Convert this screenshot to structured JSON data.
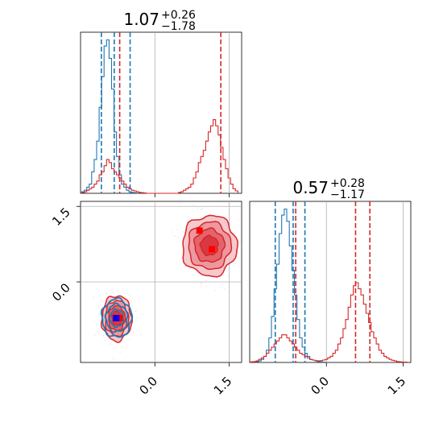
{
  "chart_data": [
    {
      "type": "histogram",
      "panel": "marginal-param-1",
      "title": {
        "value": "1.07",
        "upper": "+0.26",
        "lower": "−1.78"
      },
      "xlim": [
        -1.5,
        1.75
      ],
      "xticks": [
        "0.0",
        "1.5"
      ],
      "grid": true,
      "series": [
        {
          "color": "#1f77b4",
          "bin_centers": [
            -1.45,
            -1.4,
            -1.35,
            -1.3,
            -1.25,
            -1.2,
            -1.15,
            -1.1,
            -1.05,
            -1.0,
            -0.95,
            -0.9,
            -0.85,
            -0.8,
            -0.75,
            -0.7,
            -0.65,
            -0.6,
            -0.55,
            -0.5,
            -0.45,
            -0.4
          ],
          "counts": [
            0.5,
            1,
            2,
            3,
            7,
            11,
            17,
            28,
            38,
            48,
            50,
            44,
            34,
            20,
            12,
            6,
            3,
            2,
            1,
            0.5,
            0.3,
            0.2
          ],
          "quantile_lines": [
            -1.08,
            -0.82,
            -0.5
          ]
        },
        {
          "color": "#d62728",
          "bin_centers": [
            -1.45,
            -1.4,
            -1.35,
            -1.3,
            -1.25,
            -1.2,
            -1.15,
            -1.1,
            -1.05,
            -1.0,
            -0.95,
            -0.9,
            -0.85,
            -0.8,
            -0.75,
            -0.7,
            -0.65,
            -0.6,
            -0.55,
            -0.5,
            -0.45,
            -0.4,
            -0.35,
            -0.3,
            -0.25,
            -0.2,
            0.5,
            0.55,
            0.6,
            0.65,
            0.7,
            0.75,
            0.8,
            0.85,
            0.9,
            0.95,
            1.0,
            1.05,
            1.1,
            1.15,
            1.2,
            1.25,
            1.3,
            1.35,
            1.4,
            1.45,
            1.5,
            1.55,
            1.6,
            1.65
          ],
          "counts": [
            0.3,
            0.5,
            1,
            1.5,
            2,
            3,
            4,
            6,
            7,
            9,
            11,
            10,
            8,
            7,
            6,
            5,
            4,
            3,
            2,
            1.5,
            1,
            0.8,
            0.5,
            0.3,
            0.2,
            0.1,
            0.3,
            0.5,
            1,
            1.5,
            2,
            3,
            5,
            7,
            10,
            12,
            14,
            17,
            20,
            22,
            24,
            22,
            19,
            15,
            11,
            8,
            5,
            3,
            1.5,
            0.8
          ],
          "quantile_lines": [
            -0.71,
            1.33
          ]
        }
      ]
    },
    {
      "type": "contour",
      "panel": "joint-param-1-vs-param-2",
      "xlim": [
        -1.5,
        1.75
      ],
      "ylim": [
        -1.6,
        1.6
      ],
      "xticks": [
        "0.0",
        "1.5"
      ],
      "yticks": [
        "0.0",
        "1.5"
      ],
      "grid": true,
      "series": [
        {
          "color": "#d62728",
          "markers": [
            {
              "x": -0.71,
              "y": -0.72
            },
            {
              "x": 0.9,
              "y": 1.02
            },
            {
              "x": 1.15,
              "y": 0.65
            }
          ],
          "modes": [
            {
              "cx": -0.77,
              "cy": -0.72,
              "rx": 0.3,
              "ry": 0.45
            },
            {
              "cx": 1.1,
              "cy": 0.72,
              "rx": 0.55,
              "ry": 0.6
            }
          ]
        },
        {
          "color": "#1f77b4",
          "markers": [
            {
              "x": -0.78,
              "y": -0.72
            }
          ],
          "modes": [
            {
              "cx": -0.77,
              "cy": -0.72,
              "rx": 0.3,
              "ry": 0.38
            }
          ]
        }
      ]
    },
    {
      "type": "histogram",
      "panel": "marginal-param-2",
      "title": {
        "value": "0.57",
        "upper": "+0.28",
        "lower": "−1.17"
      },
      "xlim": [
        -1.5,
        1.65
      ],
      "xticks": [
        "0.0",
        "1.5"
      ],
      "grid": true,
      "series": [
        {
          "color": "#1f77b4",
          "bin_centers": [
            -1.35,
            -1.3,
            -1.25,
            -1.2,
            -1.15,
            -1.1,
            -1.05,
            -1.0,
            -0.95,
            -0.9,
            -0.85,
            -0.8,
            -0.75,
            -0.7,
            -0.65,
            -0.6,
            -0.55,
            -0.5,
            -0.45,
            -0.4,
            -0.35,
            -0.3,
            -0.25,
            -0.2,
            -0.15,
            -0.1,
            -0.05
          ],
          "counts": [
            0.3,
            0.5,
            1,
            2,
            4,
            8,
            15,
            24,
            32,
            42,
            48,
            50,
            46,
            38,
            30,
            22,
            14,
            8,
            5,
            3,
            2,
            1,
            0.8,
            0.5,
            0.3,
            0.2,
            0.1
          ],
          "quantile_lines": [
            -1.0,
            -0.65,
            -0.42
          ]
        },
        {
          "color": "#d62728",
          "bin_centers": [
            -1.45,
            -1.4,
            -1.35,
            -1.3,
            -1.25,
            -1.2,
            -1.15,
            -1.1,
            -1.05,
            -1.0,
            -0.95,
            -0.9,
            -0.85,
            -0.8,
            -0.75,
            -0.7,
            -0.65,
            -0.6,
            -0.55,
            -0.5,
            -0.45,
            -0.4,
            -0.35,
            -0.3,
            -0.25,
            -0.2,
            -0.15,
            -0.1,
            -0.05,
            0.0,
            0.05,
            0.1,
            0.15,
            0.2,
            0.25,
            0.3,
            0.35,
            0.4,
            0.45,
            0.5,
            0.55,
            0.6,
            0.65,
            0.7,
            0.75,
            0.8,
            0.85,
            0.9,
            0.95,
            1.0,
            1.05,
            1.1,
            1.15,
            1.2,
            1.25,
            1.3,
            1.35,
            1.4,
            1.45,
            1.5,
            1.55
          ],
          "counts": [
            0.2,
            0.3,
            0.5,
            1,
            1.5,
            2,
            3,
            4,
            5,
            6,
            7,
            8,
            9,
            9,
            8,
            7,
            6,
            5,
            4,
            3,
            2.5,
            2,
            1.5,
            1,
            0.8,
            0.6,
            0.5,
            0.6,
            0.8,
            1,
            1.5,
            2,
            3,
            4,
            6,
            8,
            11,
            14,
            18,
            22,
            25,
            26,
            24,
            22,
            19,
            16,
            13,
            10,
            8,
            6,
            4,
            3,
            2,
            1.5,
            1,
            0.7,
            0.5,
            0.3,
            0.2,
            0.1,
            0.1
          ],
          "quantile_lines": [
            -0.6,
            0.57,
            0.85
          ]
        }
      ]
    }
  ]
}
